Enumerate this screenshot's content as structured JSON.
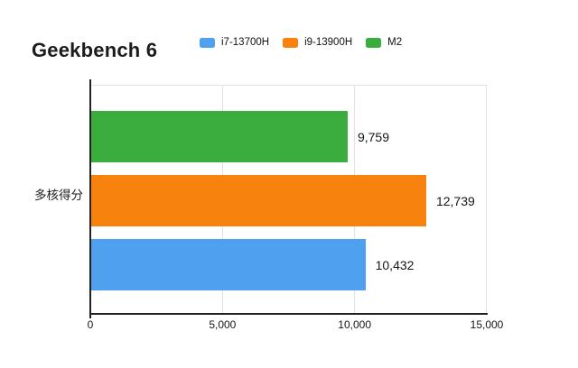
{
  "title": "Geekbench 6",
  "legend": [
    {
      "label": "i7-13700H",
      "color": "#4FA1F0"
    },
    {
      "label": "i9-13900H",
      "color": "#F7820D"
    },
    {
      "label": "M2",
      "color": "#3BAD3E"
    }
  ],
  "axis": {
    "category_label": "多核得分",
    "tick_labels": [
      "0",
      "5,000",
      "10,000",
      "15,000"
    ]
  },
  "chart_data": {
    "type": "bar",
    "orientation": "horizontal",
    "title": "Geekbench 6",
    "categories": [
      "多核得分"
    ],
    "series": [
      {
        "name": "M2",
        "value": 9759,
        "label": "9,759",
        "color": "#3BAD3E"
      },
      {
        "name": "i9-13900H",
        "value": 12739,
        "label": "12,739",
        "color": "#F7820D"
      },
      {
        "name": "i7-13700H",
        "value": 10432,
        "label": "10,432",
        "color": "#4FA1F0"
      }
    ],
    "series_visual_order": "top to bottom: M2, i9-13900H, i7-13700H",
    "xlim": [
      0,
      15000
    ],
    "xticks": [
      0,
      5000,
      10000,
      15000
    ],
    "xtick_labels": [
      "0",
      "5,000",
      "10,000",
      "15,000"
    ],
    "grid": true,
    "legend_position": "top",
    "value_labels_shown": true
  }
}
